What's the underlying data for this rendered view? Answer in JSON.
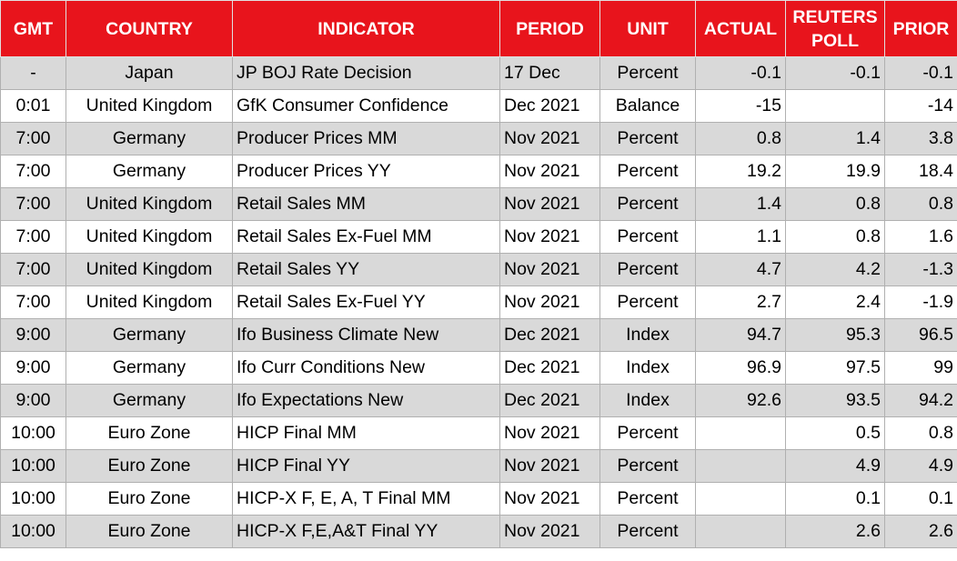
{
  "table": {
    "header": [
      "GMT",
      "COUNTRY",
      "INDICATOR",
      "PERIOD",
      "UNIT",
      "ACTUAL",
      "REUTERS POLL",
      "PRIOR"
    ],
    "rows": [
      [
        "-",
        "Japan",
        "JP BOJ Rate Decision",
        "17 Dec",
        "Percent",
        "-0.1",
        "-0.1",
        "-0.1"
      ],
      [
        "0:01",
        "United Kingdom",
        "GfK Consumer Confidence",
        "Dec 2021",
        "Balance",
        "-15",
        null,
        "-14"
      ],
      [
        "7:00",
        "Germany",
        "Producer Prices MM",
        "Nov 2021",
        "Percent",
        "0.8",
        "1.4",
        "3.8"
      ],
      [
        "7:00",
        "Germany",
        "Producer Prices YY",
        "Nov 2021",
        "Percent",
        "19.2",
        "19.9",
        "18.4"
      ],
      [
        "7:00",
        "United Kingdom",
        "Retail Sales MM",
        "Nov 2021",
        "Percent",
        "1.4",
        "0.8",
        "0.8"
      ],
      [
        "7:00",
        "United Kingdom",
        "Retail Sales Ex-Fuel MM",
        "Nov 2021",
        "Percent",
        "1.1",
        "0.8",
        "1.6"
      ],
      [
        "7:00",
        "United Kingdom",
        "Retail Sales YY",
        "Nov 2021",
        "Percent",
        "4.7",
        "4.2",
        "-1.3"
      ],
      [
        "7:00",
        "United Kingdom",
        "Retail Sales Ex-Fuel YY",
        "Nov 2021",
        "Percent",
        "2.7",
        "2.4",
        "-1.9"
      ],
      [
        "9:00",
        "Germany",
        "Ifo Business Climate New",
        "Dec 2021",
        "Index",
        "94.7",
        "95.3",
        "96.5"
      ],
      [
        "9:00",
        "Germany",
        "Ifo Curr Conditions New",
        "Dec 2021",
        "Index",
        "96.9",
        "97.5",
        "99"
      ],
      [
        "9:00",
        "Germany",
        "Ifo Expectations New",
        "Dec 2021",
        "Index",
        "92.6",
        "93.5",
        "94.2"
      ],
      [
        "10:00",
        "Euro Zone",
        "HICP Final MM",
        "Nov 2021",
        "Percent",
        null,
        "0.5",
        "0.8"
      ],
      [
        "10:00",
        "Euro Zone",
        "HICP Final YY",
        "Nov 2021",
        "Percent",
        null,
        "4.9",
        "4.9"
      ],
      [
        "10:00",
        "Euro Zone",
        "HICP-X F, E, A, T Final MM",
        "Nov 2021",
        "Percent",
        null,
        "0.1",
        "0.1"
      ],
      [
        "10:00",
        "Euro Zone",
        "HICP-X F,E,A&T Final YY",
        "Nov 2021",
        "Percent",
        null,
        "2.6",
        "2.6"
      ]
    ]
  }
}
